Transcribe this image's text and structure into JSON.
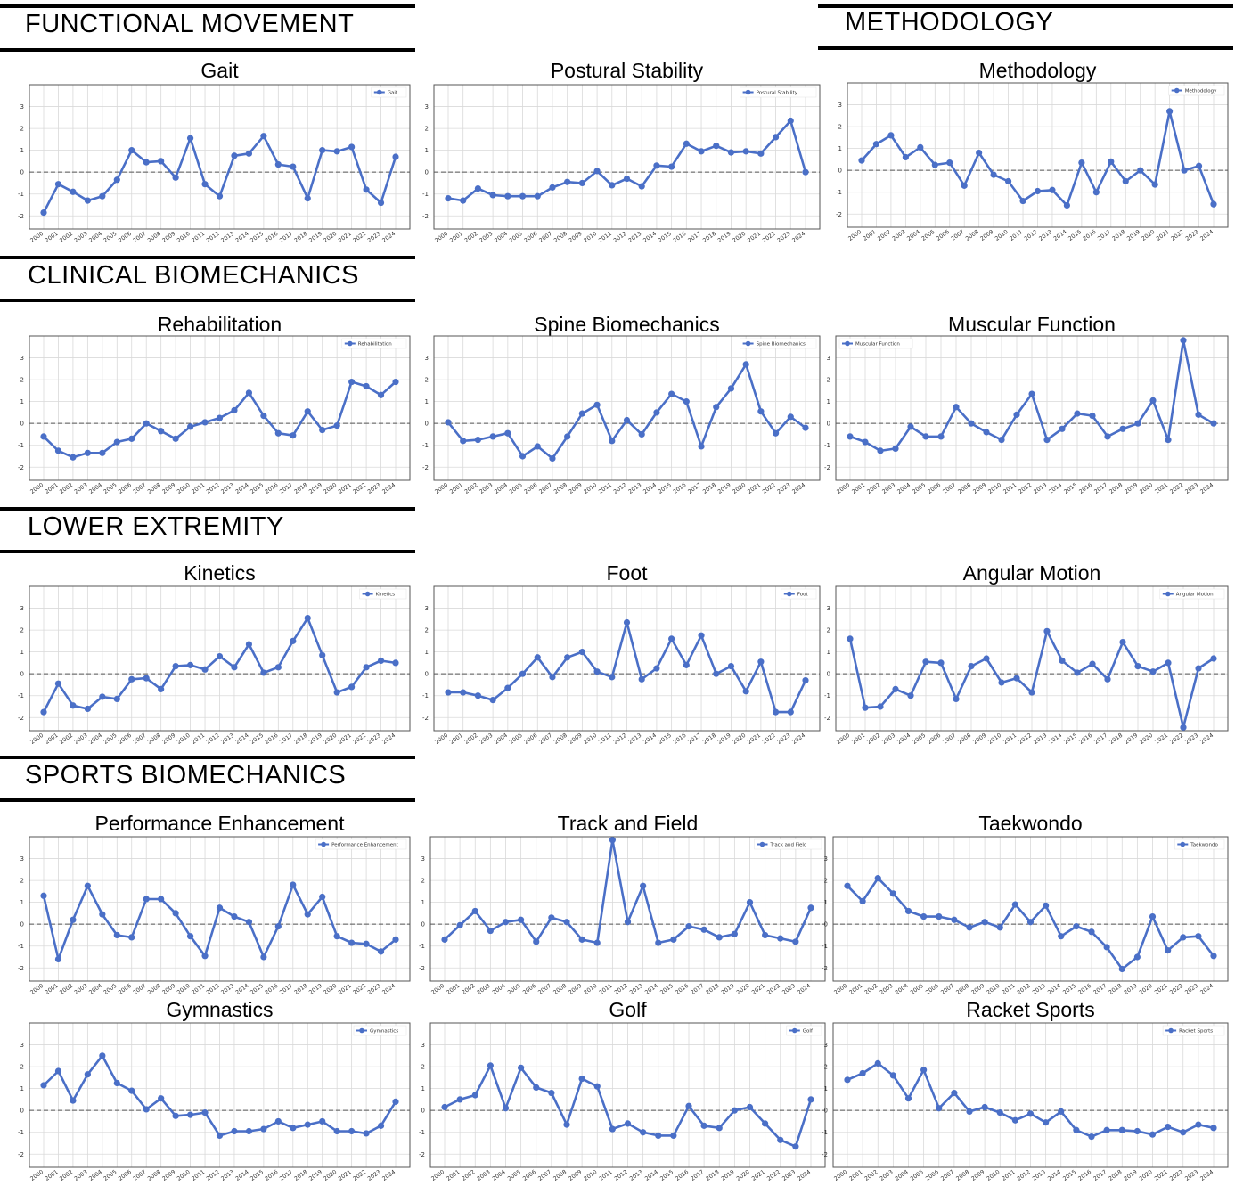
{
  "sections": [
    {
      "id": "functional",
      "label": "FUNCTIONAL MOVEMENT"
    },
    {
      "id": "methodology",
      "label": "METHODOLOGY"
    },
    {
      "id": "clinical",
      "label": "CLINICAL BIOMECHANICS"
    },
    {
      "id": "lower",
      "label": "LOWER EXTREMITY"
    },
    {
      "id": "sports",
      "label": "SPORTS BIOMECHANICS"
    }
  ],
  "colors": {
    "line": "#4a6fc7",
    "grid": "#d9d9d9",
    "axis": "#555555",
    "zero_line": "#555555"
  },
  "chart_data": [
    {
      "id": "gait",
      "type": "line",
      "title": "Gait",
      "legend": "Gait",
      "legend_position": "top-right",
      "x": [
        "2000",
        "2001",
        "2002",
        "2003",
        "2004",
        "2005",
        "2006",
        "2007",
        "2008",
        "2009",
        "2010",
        "2011",
        "2012",
        "2013",
        "2014",
        "2015",
        "2016",
        "2017",
        "2018",
        "2019",
        "2020",
        "2021",
        "2022",
        "2023",
        "2024"
      ],
      "values": [
        -1.85,
        -0.55,
        -0.9,
        -1.3,
        -1.1,
        -0.35,
        1.0,
        0.45,
        0.5,
        -0.25,
        1.55,
        -0.55,
        -1.1,
        0.75,
        0.85,
        1.65,
        0.35,
        0.25,
        -1.2,
        1.0,
        0.95,
        1.15,
        -0.8,
        -1.4,
        0.7
      ],
      "yticks": [
        -2,
        -1,
        0,
        1,
        2,
        3
      ],
      "ylim": [
        -2.6,
        4.0
      ],
      "grid": true
    },
    {
      "id": "postural",
      "type": "line",
      "title": "Postural Stability",
      "legend": "Postural Stability",
      "legend_position": "top-right",
      "x": [
        "2000",
        "2001",
        "2002",
        "2003",
        "2004",
        "2005",
        "2006",
        "2007",
        "2008",
        "2009",
        "2010",
        "2011",
        "2012",
        "2013",
        "2014",
        "2015",
        "2016",
        "2017",
        "2018",
        "2019",
        "2020",
        "2021",
        "2022",
        "2023",
        "2024"
      ],
      "values": [
        -1.2,
        -1.3,
        -0.75,
        -1.05,
        -1.1,
        -1.1,
        -1.1,
        -0.7,
        -0.45,
        -0.5,
        0.05,
        -0.6,
        -0.3,
        -0.65,
        0.3,
        0.25,
        1.3,
        0.95,
        1.2,
        0.9,
        0.95,
        0.85,
        1.6,
        2.35,
        0.0
      ],
      "yticks": [
        -2,
        -1,
        0,
        1,
        2,
        3
      ],
      "ylim": [
        -2.6,
        4.0
      ],
      "grid": true
    },
    {
      "id": "methodology",
      "type": "line",
      "title": "Methodology",
      "legend": "Methodology",
      "legend_position": "top-right",
      "x": [
        "2000",
        "2001",
        "2002",
        "2003",
        "2004",
        "2005",
        "2006",
        "2007",
        "2008",
        "2009",
        "2010",
        "2011",
        "2012",
        "2013",
        "2014",
        "2015",
        "2016",
        "2017",
        "2018",
        "2019",
        "2020",
        "2021",
        "2022",
        "2023",
        "2024"
      ],
      "values": [
        0.45,
        1.2,
        1.6,
        0.6,
        1.05,
        0.25,
        0.35,
        -0.7,
        0.8,
        -0.2,
        -0.5,
        -1.4,
        -0.95,
        -0.9,
        -1.6,
        0.35,
        -1.0,
        0.4,
        -0.5,
        0.0,
        -0.65,
        2.7,
        0.0,
        0.2,
        -1.55
      ],
      "yticks": [
        -2,
        -1,
        0,
        1,
        2,
        3
      ],
      "ylim": [
        -2.6,
        4.0
      ],
      "grid": true
    },
    {
      "id": "rehab",
      "type": "line",
      "title": "Rehabilitation",
      "legend": "Rehabilitation",
      "legend_position": "top-right",
      "x": [
        "2000",
        "2001",
        "2002",
        "2003",
        "2004",
        "2005",
        "2006",
        "2007",
        "2008",
        "2009",
        "2010",
        "2011",
        "2012",
        "2013",
        "2014",
        "2015",
        "2016",
        "2017",
        "2018",
        "2019",
        "2020",
        "2021",
        "2022",
        "2023",
        "2024"
      ],
      "values": [
        -0.6,
        -1.25,
        -1.55,
        -1.35,
        -1.35,
        -0.85,
        -0.7,
        0.0,
        -0.35,
        -0.7,
        -0.15,
        0.05,
        0.25,
        0.6,
        1.4,
        0.35,
        -0.45,
        -0.55,
        0.55,
        -0.3,
        -0.1,
        1.9,
        1.7,
        1.3,
        1.9
      ],
      "yticks": [
        -2,
        -1,
        0,
        1,
        2,
        3
      ],
      "ylim": [
        -2.6,
        4.0
      ],
      "grid": true
    },
    {
      "id": "spine",
      "type": "line",
      "title": "Spine Biomechanics",
      "legend": "Spine Biomechanics",
      "legend_position": "top-right",
      "x": [
        "2000",
        "2001",
        "2002",
        "2003",
        "2004",
        "2005",
        "2006",
        "2007",
        "2008",
        "2009",
        "2010",
        "2011",
        "2012",
        "2013",
        "2014",
        "2015",
        "2016",
        "2017",
        "2018",
        "2019",
        "2020",
        "2021",
        "2022",
        "2023",
        "2024"
      ],
      "values": [
        0.05,
        -0.8,
        -0.75,
        -0.6,
        -0.45,
        -1.5,
        -1.05,
        -1.6,
        -0.6,
        0.45,
        0.85,
        -0.8,
        0.15,
        -0.5,
        0.5,
        1.35,
        1.0,
        -1.05,
        0.75,
        1.6,
        2.7,
        0.55,
        -0.45,
        0.3,
        -0.2
      ],
      "yticks": [
        -2,
        -1,
        0,
        1,
        2,
        3
      ],
      "ylim": [
        -2.6,
        4.0
      ],
      "grid": true
    },
    {
      "id": "muscular",
      "type": "line",
      "title": "Muscular Function",
      "legend": "Muscular Function",
      "legend_position": "top-left",
      "x": [
        "2000",
        "2001",
        "2002",
        "2003",
        "2004",
        "2005",
        "2006",
        "2007",
        "2008",
        "2009",
        "2010",
        "2011",
        "2012",
        "2013",
        "2014",
        "2015",
        "2016",
        "2017",
        "2018",
        "2019",
        "2020",
        "2021",
        "2022",
        "2023",
        "2024"
      ],
      "values": [
        -0.6,
        -0.85,
        -1.25,
        -1.15,
        -0.15,
        -0.6,
        -0.6,
        0.75,
        0.0,
        -0.4,
        -0.75,
        0.4,
        1.35,
        -0.75,
        -0.25,
        0.45,
        0.35,
        -0.6,
        -0.25,
        0.0,
        1.05,
        -0.75,
        3.8,
        0.4,
        0.0
      ],
      "yticks": [
        -2,
        -1,
        0,
        1,
        2,
        3
      ],
      "ylim": [
        -2.6,
        4.0
      ],
      "grid": true
    },
    {
      "id": "kinetics",
      "type": "line",
      "title": "Kinetics",
      "legend": "Kinetics",
      "legend_position": "top-right",
      "x": [
        "2000",
        "2001",
        "2002",
        "2003",
        "2004",
        "2005",
        "2006",
        "2007",
        "2008",
        "2009",
        "2010",
        "2011",
        "2012",
        "2013",
        "2014",
        "2015",
        "2016",
        "2017",
        "2018",
        "2019",
        "2020",
        "2021",
        "2022",
        "2023",
        "2024"
      ],
      "values": [
        -1.75,
        -0.45,
        -1.45,
        -1.6,
        -1.05,
        -1.15,
        -0.25,
        -0.2,
        -0.7,
        0.35,
        0.4,
        0.2,
        0.8,
        0.3,
        1.35,
        0.05,
        0.3,
        1.5,
        2.55,
        0.85,
        -0.85,
        -0.6,
        0.3,
        0.6,
        0.5
      ],
      "yticks": [
        -2,
        -1,
        0,
        1,
        2,
        3
      ],
      "ylim": [
        -2.6,
        4.0
      ],
      "grid": true
    },
    {
      "id": "foot",
      "type": "line",
      "title": "Foot",
      "legend": "Foot",
      "legend_position": "top-right",
      "x": [
        "2000",
        "2001",
        "2002",
        "2003",
        "2004",
        "2005",
        "2006",
        "2007",
        "2008",
        "2009",
        "2010",
        "2011",
        "2012",
        "2013",
        "2014",
        "2015",
        "2016",
        "2017",
        "2018",
        "2019",
        "2020",
        "2021",
        "2022",
        "2023",
        "2024"
      ],
      "values": [
        -0.85,
        -0.85,
        -1.0,
        -1.2,
        -0.65,
        0.0,
        0.75,
        -0.15,
        0.75,
        1.0,
        0.1,
        -0.15,
        2.35,
        -0.25,
        0.25,
        1.6,
        0.4,
        1.75,
        0.0,
        0.35,
        -0.8,
        0.55,
        -1.75,
        -1.75,
        -0.3
      ],
      "yticks": [
        -2,
        -1,
        0,
        1,
        2,
        3
      ],
      "ylim": [
        -2.6,
        4.0
      ],
      "grid": true
    },
    {
      "id": "angular",
      "type": "line",
      "title": "Angular Motion",
      "legend": "Angular Motion",
      "legend_position": "top-right",
      "x": [
        "2000",
        "2001",
        "2002",
        "2003",
        "2004",
        "2005",
        "2006",
        "2007",
        "2008",
        "2009",
        "2010",
        "2011",
        "2012",
        "2013",
        "2014",
        "2015",
        "2016",
        "2017",
        "2018",
        "2019",
        "2020",
        "2021",
        "2022",
        "2023",
        "2024"
      ],
      "values": [
        1.6,
        -1.55,
        -1.5,
        -0.7,
        -1.0,
        0.55,
        0.5,
        -1.15,
        0.35,
        0.7,
        -0.4,
        -0.2,
        -0.85,
        1.95,
        0.6,
        0.05,
        0.45,
        -0.25,
        1.45,
        0.35,
        0.1,
        0.5,
        -2.45,
        0.25,
        0.7
      ],
      "yticks": [
        -2,
        -1,
        0,
        1,
        2,
        3
      ],
      "ylim": [
        -2.6,
        4.0
      ],
      "grid": true
    },
    {
      "id": "performance",
      "type": "line",
      "title": "Performance Enhancement",
      "legend": "Performance Enhancement",
      "legend_position": "top-right",
      "x": [
        "2000",
        "2001",
        "2002",
        "2003",
        "2004",
        "2005",
        "2006",
        "2007",
        "2008",
        "2009",
        "2010",
        "2011",
        "2012",
        "2013",
        "2014",
        "2015",
        "2016",
        "2017",
        "2018",
        "2019",
        "2020",
        "2021",
        "2022",
        "2023",
        "2024"
      ],
      "values": [
        1.3,
        -1.6,
        0.2,
        1.75,
        0.45,
        -0.5,
        -0.6,
        1.15,
        1.15,
        0.5,
        -0.55,
        -1.45,
        0.75,
        0.35,
        0.1,
        -1.5,
        -0.1,
        1.8,
        0.45,
        1.25,
        -0.55,
        -0.85,
        -0.9,
        -1.25,
        -0.7
      ],
      "yticks": [
        -2,
        -1,
        0,
        1,
        2,
        3
      ],
      "ylim": [
        -2.6,
        4.0
      ],
      "grid": true
    },
    {
      "id": "track",
      "type": "line",
      "title": "Track and Field",
      "legend": "Track and Field",
      "legend_position": "top-right",
      "x": [
        "2000",
        "2001",
        "2002",
        "2003",
        "2004",
        "2005",
        "2006",
        "2007",
        "2008",
        "2009",
        "2010",
        "2011",
        "2012",
        "2013",
        "2014",
        "2015",
        "2016",
        "2017",
        "2018",
        "2019",
        "2020",
        "2021",
        "2022",
        "2023",
        "2024"
      ],
      "values": [
        -0.7,
        -0.05,
        0.6,
        -0.3,
        0.1,
        0.2,
        -0.8,
        0.3,
        0.1,
        -0.7,
        -0.85,
        3.85,
        0.1,
        1.75,
        -0.85,
        -0.7,
        -0.1,
        -0.25,
        -0.6,
        -0.45,
        1.0,
        -0.5,
        -0.65,
        -0.8,
        0.75
      ],
      "yticks": [
        -2,
        -1,
        0,
        1,
        2,
        3
      ],
      "ylim": [
        -2.6,
        4.0
      ],
      "grid": true
    },
    {
      "id": "taekwondo",
      "type": "line",
      "title": "Taekwondo",
      "legend": "Taekwondo",
      "legend_position": "top-right",
      "x": [
        "2000",
        "2001",
        "2002",
        "2003",
        "2004",
        "2005",
        "2006",
        "2007",
        "2008",
        "2009",
        "2010",
        "2011",
        "2012",
        "2013",
        "2014",
        "2015",
        "2016",
        "2017",
        "2018",
        "2019",
        "2020",
        "2021",
        "2022",
        "2023",
        "2024"
      ],
      "values": [
        1.75,
        1.05,
        2.1,
        1.4,
        0.6,
        0.35,
        0.35,
        0.2,
        -0.15,
        0.1,
        -0.15,
        0.9,
        0.1,
        0.85,
        -0.55,
        -0.1,
        -0.35,
        -1.05,
        -2.05,
        -1.5,
        0.35,
        -1.2,
        -0.6,
        -0.55,
        -1.45
      ],
      "yticks": [
        -2,
        -1,
        0,
        1,
        2,
        3
      ],
      "ylim": [
        -2.6,
        4.0
      ],
      "grid": true
    },
    {
      "id": "gymnastics",
      "type": "line",
      "title": "Gymnastics",
      "legend": "Gymnastics",
      "legend_position": "top-right",
      "x": [
        "2000",
        "2001",
        "2002",
        "2003",
        "2004",
        "2005",
        "2006",
        "2007",
        "2008",
        "2009",
        "2010",
        "2011",
        "2012",
        "2013",
        "2014",
        "2015",
        "2016",
        "2017",
        "2018",
        "2019",
        "2020",
        "2021",
        "2022",
        "2023",
        "2024"
      ],
      "values": [
        1.15,
        1.8,
        0.45,
        1.65,
        2.5,
        1.25,
        0.9,
        0.05,
        0.55,
        -0.25,
        -0.2,
        -0.1,
        -1.15,
        -0.95,
        -0.95,
        -0.85,
        -0.5,
        -0.8,
        -0.65,
        -0.5,
        -0.95,
        -0.95,
        -1.05,
        -0.7,
        0.4
      ],
      "yticks": [
        -2,
        -1,
        0,
        1,
        2,
        3
      ],
      "ylim": [
        -2.6,
        4.0
      ],
      "grid": true
    },
    {
      "id": "golf",
      "type": "line",
      "title": "Golf",
      "legend": "Golf",
      "legend_position": "top-right",
      "x": [
        "2000",
        "2001",
        "2002",
        "2003",
        "2004",
        "2005",
        "2006",
        "2007",
        "2008",
        "2009",
        "2010",
        "2011",
        "2012",
        "2013",
        "2014",
        "2015",
        "2016",
        "2017",
        "2018",
        "2019",
        "2020",
        "2021",
        "2022",
        "2023",
        "2024"
      ],
      "values": [
        0.15,
        0.5,
        0.7,
        2.05,
        0.1,
        1.95,
        1.05,
        0.8,
        -0.65,
        1.45,
        1.1,
        -0.85,
        -0.6,
        -1.0,
        -1.15,
        -1.15,
        0.2,
        -0.7,
        -0.8,
        0.0,
        0.15,
        -0.6,
        -1.35,
        -1.65,
        0.5
      ],
      "yticks": [
        -2,
        -1,
        0,
        1,
        2,
        3
      ],
      "ylim": [
        -2.6,
        4.0
      ],
      "grid": true
    },
    {
      "id": "racket",
      "type": "line",
      "title": "Racket Sports",
      "legend": "Racket Sports",
      "legend_position": "top-right",
      "x": [
        "2000",
        "2001",
        "2002",
        "2003",
        "2004",
        "2005",
        "2006",
        "2007",
        "2008",
        "2009",
        "2010",
        "2011",
        "2012",
        "2013",
        "2014",
        "2015",
        "2016",
        "2017",
        "2018",
        "2019",
        "2020",
        "2021",
        "2022",
        "2023",
        "2024"
      ],
      "values": [
        1.4,
        1.7,
        2.15,
        1.6,
        0.55,
        1.85,
        0.1,
        0.8,
        -0.05,
        0.15,
        -0.1,
        -0.45,
        -0.15,
        -0.55,
        -0.05,
        -0.9,
        -1.2,
        -0.9,
        -0.9,
        -0.95,
        -1.1,
        -0.75,
        -1.0,
        -0.65,
        -0.8
      ],
      "yticks": [
        -2,
        -1,
        0,
        1,
        2,
        3
      ],
      "ylim": [
        -2.6,
        4.0
      ],
      "grid": true
    }
  ]
}
